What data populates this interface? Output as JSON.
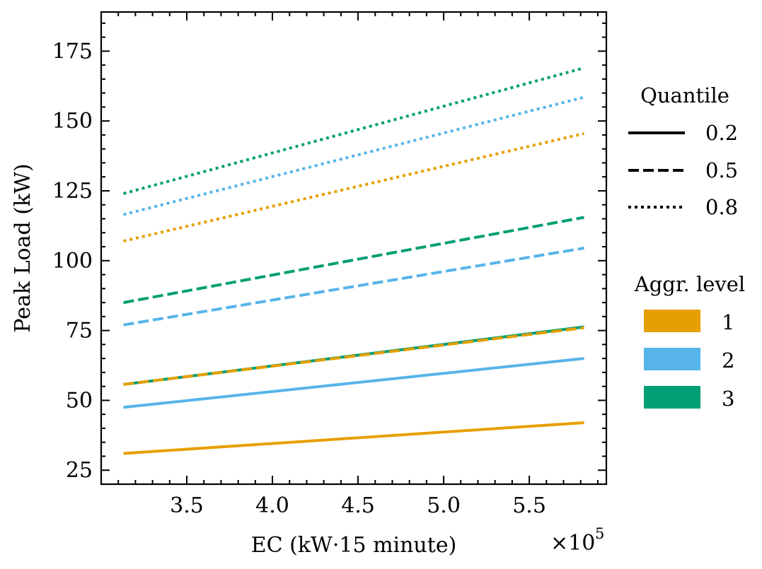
{
  "chart_data": {
    "type": "line",
    "title": "",
    "xlabel": "EC (kW·15 minute)",
    "ylabel": "Peak Load (kW)",
    "x_multiplier_label": "×10",
    "x_multiplier_exponent": "5",
    "xlim": [
      3.0,
      5.95
    ],
    "ylim": [
      20,
      189
    ],
    "xticks": [
      3.5,
      4.0,
      4.5,
      5.0,
      5.5
    ],
    "xtick_labels": [
      "3.5",
      "4.0",
      "4.5",
      "5.0",
      "5.5"
    ],
    "yticks": [
      25,
      50,
      75,
      100,
      125,
      150,
      175
    ],
    "ytick_labels": [
      "25",
      "50",
      "75",
      "100",
      "125",
      "150",
      "175"
    ],
    "grid": false,
    "series": [
      {
        "name": "Aggr. 1, quantile 0.2",
        "aggr": 1,
        "quantile": 0.2,
        "style": "solid",
        "color": "#E69F00",
        "x": [
          3.13,
          5.82
        ],
        "y": [
          31,
          42
        ]
      },
      {
        "name": "Aggr. 2, quantile 0.2",
        "aggr": 2,
        "quantile": 0.2,
        "style": "solid",
        "color": "#56B4E9",
        "x": [
          3.13,
          5.82
        ],
        "y": [
          47.5,
          65
        ]
      },
      {
        "name": "Aggr. 3, quantile 0.2",
        "aggr": 3,
        "quantile": 0.2,
        "style": "solid",
        "color": "#009E73",
        "x": [
          3.13,
          5.82
        ],
        "y": [
          55.7,
          76.3
        ]
      },
      {
        "name": "Aggr. 1, quantile 0.5",
        "aggr": 1,
        "quantile": 0.5,
        "style": "dashed",
        "color": "#E69F00",
        "x": [
          3.13,
          5.82
        ],
        "y": [
          55.7,
          76
        ]
      },
      {
        "name": "Aggr. 2, quantile 0.5",
        "aggr": 2,
        "quantile": 0.5,
        "style": "dashed",
        "color": "#56B4E9",
        "x": [
          3.13,
          5.82
        ],
        "y": [
          77,
          104.5
        ]
      },
      {
        "name": "Aggr. 3, quantile 0.5",
        "aggr": 3,
        "quantile": 0.5,
        "style": "dashed",
        "color": "#009E73",
        "x": [
          3.13,
          5.82
        ],
        "y": [
          85,
          115.5
        ]
      },
      {
        "name": "Aggr. 1, quantile 0.8",
        "aggr": 1,
        "quantile": 0.8,
        "style": "dotted",
        "color": "#E69F00",
        "x": [
          3.13,
          5.82
        ],
        "y": [
          107,
          145.5
        ]
      },
      {
        "name": "Aggr. 2, quantile 0.8",
        "aggr": 2,
        "quantile": 0.8,
        "style": "dotted",
        "color": "#56B4E9",
        "x": [
          3.13,
          5.82
        ],
        "y": [
          116.5,
          158.5
        ]
      },
      {
        "name": "Aggr. 3, quantile 0.8",
        "aggr": 3,
        "quantile": 0.8,
        "style": "dotted",
        "color": "#009E73",
        "x": [
          3.13,
          5.82
        ],
        "y": [
          124,
          169
        ]
      }
    ],
    "legend_quantile": {
      "title": "Quantile",
      "placement": "right",
      "entries": [
        {
          "label": "0.2",
          "style": "solid"
        },
        {
          "label": "0.5",
          "style": "dashed"
        },
        {
          "label": "0.8",
          "style": "dotted"
        }
      ]
    },
    "legend_aggr": {
      "title": "Aggr. level",
      "placement": "right",
      "entries": [
        {
          "label": "1",
          "color": "#E69F00"
        },
        {
          "label": "2",
          "color": "#56B4E9"
        },
        {
          "label": "3",
          "color": "#009E73"
        }
      ]
    }
  }
}
